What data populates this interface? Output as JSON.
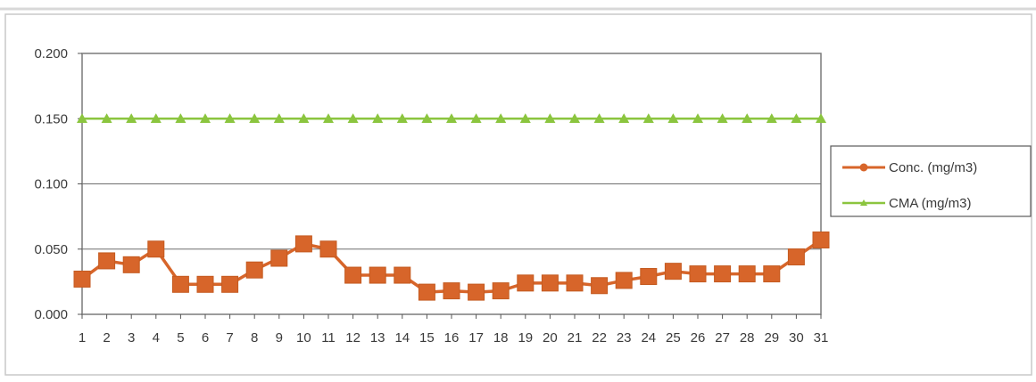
{
  "chart_data": {
    "type": "line",
    "title": "",
    "xlabel": "",
    "ylabel": "",
    "x": [
      1,
      2,
      3,
      4,
      5,
      6,
      7,
      8,
      9,
      10,
      11,
      12,
      13,
      14,
      15,
      16,
      17,
      18,
      19,
      20,
      21,
      22,
      23,
      24,
      25,
      26,
      27,
      28,
      29,
      30,
      31
    ],
    "x_tick_labels": [
      "1",
      "2",
      "3",
      "4",
      "5",
      "6",
      "7",
      "8",
      "9",
      "10",
      "11",
      "12",
      "13",
      "14",
      "15",
      "16",
      "17",
      "18",
      "19",
      "20",
      "21",
      "22",
      "23",
      "24",
      "25",
      "26",
      "27",
      "28",
      "29",
      "30",
      "31"
    ],
    "y_ticks": [
      0,
      0.05,
      0.1,
      0.15,
      0.2
    ],
    "y_tick_labels": [
      "0.000",
      "0.050",
      "0.100",
      "0.150",
      "0.200"
    ],
    "ylim": [
      0,
      0.2
    ],
    "grid": "horizontal",
    "legend_position": "right",
    "series": [
      {
        "name": "Conc. (mg/m3)",
        "color": "#d7652a",
        "marker": "square",
        "values": [
          0.027,
          0.041,
          0.038,
          0.05,
          0.023,
          0.023,
          0.023,
          0.034,
          0.043,
          0.054,
          0.05,
          0.03,
          0.03,
          0.03,
          0.017,
          0.018,
          0.017,
          0.018,
          0.024,
          0.024,
          0.024,
          0.022,
          0.026,
          0.029,
          0.033,
          0.031,
          0.031,
          0.031,
          0.031,
          0.044,
          0.057
        ]
      },
      {
        "name": "CMA (mg/m3)",
        "color": "#8bc53f",
        "marker": "triangle",
        "values": [
          0.15,
          0.15,
          0.15,
          0.15,
          0.15,
          0.15,
          0.15,
          0.15,
          0.15,
          0.15,
          0.15,
          0.15,
          0.15,
          0.15,
          0.15,
          0.15,
          0.15,
          0.15,
          0.15,
          0.15,
          0.15,
          0.15,
          0.15,
          0.15,
          0.15,
          0.15,
          0.15,
          0.15,
          0.15,
          0.15,
          0.15
        ]
      }
    ]
  }
}
